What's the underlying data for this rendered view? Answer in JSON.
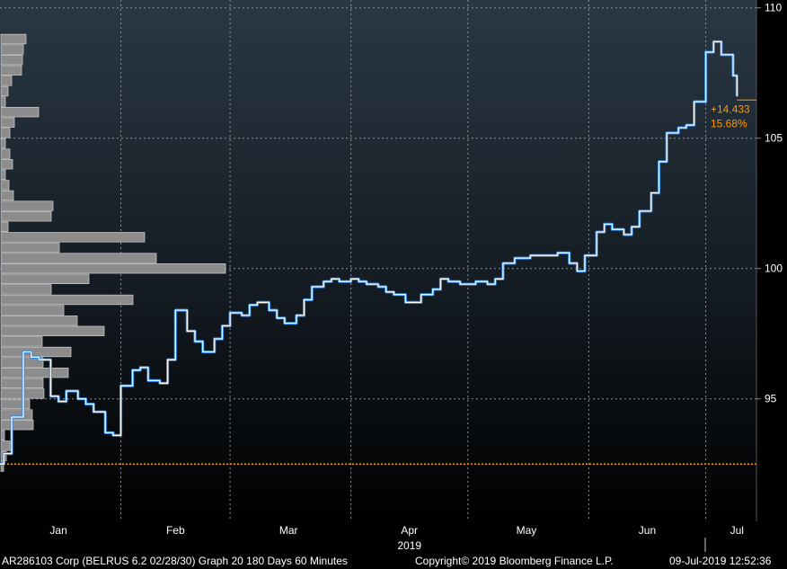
{
  "chart_data": {
    "type": "line",
    "title": "",
    "xlabel": "",
    "ylabel": "",
    "year_label": "2019",
    "ylim": [
      90.3,
      110.3
    ],
    "y_ticks": [
      95,
      100,
      105,
      110
    ],
    "x_tick_labels": [
      "Jan",
      "Feb",
      "Mar",
      "Apr",
      "May",
      "Jun",
      "Jul"
    ],
    "grid": true,
    "reference_line": {
      "value": 92.5,
      "color": "#ff9900"
    },
    "last_change": {
      "abs": "+14.433",
      "pct": "15.68%"
    },
    "series": [
      {
        "color": "#ffffff",
        "x": [
          "2019-01-01",
          "2019-01-02",
          "2019-01-04",
          "2019-01-07",
          "2019-01-09",
          "2019-01-11",
          "2019-01-14",
          "2019-01-16",
          "2019-01-18",
          "2019-01-21",
          "2019-01-23",
          "2019-01-25",
          "2019-01-28",
          "2019-01-30",
          "2019-02-01",
          "2019-02-04",
          "2019-02-06",
          "2019-02-08",
          "2019-02-11",
          "2019-02-13",
          "2019-02-15",
          "2019-02-18",
          "2019-02-20",
          "2019-02-22",
          "2019-02-25",
          "2019-02-27",
          "2019-03-01",
          "2019-03-04",
          "2019-03-06",
          "2019-03-08",
          "2019-03-11",
          "2019-03-13",
          "2019-03-15",
          "2019-03-18",
          "2019-03-20",
          "2019-03-22",
          "2019-03-25",
          "2019-03-27",
          "2019-03-29",
          "2019-04-01",
          "2019-04-03",
          "2019-04-05",
          "2019-04-08",
          "2019-04-10",
          "2019-04-12",
          "2019-04-15",
          "2019-04-17",
          "2019-04-19",
          "2019-04-22",
          "2019-04-24",
          "2019-04-26",
          "2019-04-29",
          "2019-05-01",
          "2019-05-03",
          "2019-05-06",
          "2019-05-08",
          "2019-05-10",
          "2019-05-13",
          "2019-05-15",
          "2019-05-17",
          "2019-05-20",
          "2019-05-22",
          "2019-05-24",
          "2019-05-27",
          "2019-05-29",
          "2019-05-31",
          "2019-06-03",
          "2019-06-05",
          "2019-06-07",
          "2019-06-10",
          "2019-06-12",
          "2019-06-14",
          "2019-06-17",
          "2019-06-19",
          "2019-06-21",
          "2019-06-24",
          "2019-06-26",
          "2019-06-28",
          "2019-07-01",
          "2019-07-03",
          "2019-07-05",
          "2019-07-08",
          "2019-07-09"
        ],
        "y": [
          92.5,
          92.9,
          94.3,
          96.8,
          96.6,
          96.5,
          95.1,
          94.9,
          95.3,
          95.0,
          94.8,
          94.5,
          93.7,
          93.6,
          95.5,
          96.1,
          96.2,
          95.7,
          95.6,
          96.5,
          98.4,
          97.6,
          97.2,
          96.8,
          97.3,
          97.8,
          98.3,
          98.2,
          98.6,
          98.7,
          98.4,
          98.1,
          97.9,
          98.2,
          98.8,
          99.3,
          99.5,
          99.6,
          99.5,
          99.6,
          99.5,
          99.4,
          99.3,
          99.1,
          99.0,
          98.7,
          98.7,
          99.0,
          99.2,
          99.6,
          99.5,
          99.4,
          99.4,
          99.5,
          99.4,
          99.6,
          100.2,
          100.4,
          100.4,
          100.5,
          100.5,
          100.5,
          100.6,
          100.2,
          99.9,
          100.5,
          101.4,
          101.7,
          101.5,
          101.3,
          101.6,
          102.2,
          102.9,
          104.1,
          105.2,
          105.4,
          105.5,
          106.4,
          108.3,
          108.7,
          108.2,
          107.4,
          106.6
        ]
      }
    ],
    "volume_profile": {
      "prices": [
        108.8,
        108.4,
        108.0,
        107.6,
        107.2,
        106.8,
        106.4,
        106.0,
        105.6,
        105.2,
        104.8,
        104.4,
        104.0,
        103.6,
        103.2,
        102.8,
        102.4,
        102.0,
        101.6,
        101.2,
        100.8,
        100.4,
        100.0,
        99.6,
        99.2,
        98.8,
        98.4,
        98.0,
        97.6,
        97.2,
        96.8,
        96.4,
        96.0,
        95.6,
        95.2,
        94.8,
        94.4,
        94.0,
        93.6,
        93.2,
        92.8,
        92.4
      ],
      "volumes": [
        28,
        25,
        24,
        23,
        12,
        8,
        5,
        42,
        15,
        10,
        5,
        10,
        13,
        5,
        9,
        14,
        58,
        56,
        8,
        160,
        65,
        173,
        250,
        98,
        56,
        147,
        70,
        85,
        115,
        46,
        78,
        47,
        75,
        47,
        48,
        32,
        35,
        36,
        4,
        10,
        6,
        3
      ]
    }
  },
  "footer": {
    "left": "AR286103 Corp (BELRUS 6.2 02/28/30) Graph 20 180 Days 60 Minutes",
    "center": "Copyright© 2019 Bloomberg Finance L.P.",
    "right": "09-Jul-2019 12:52:36"
  }
}
